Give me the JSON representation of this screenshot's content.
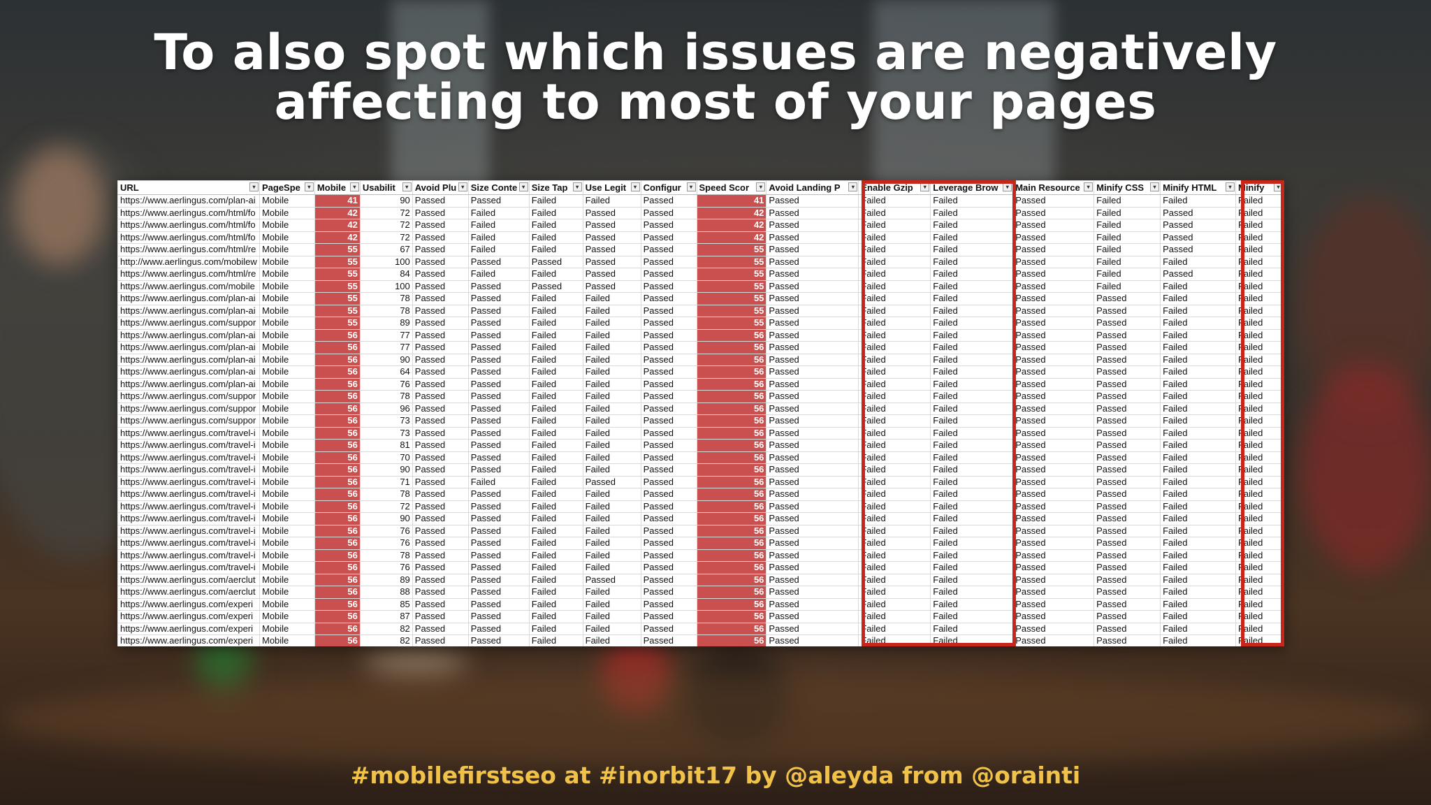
{
  "slide": {
    "title_line1": "To also spot which issues are negatively",
    "title_line2": "affecting to most of your pages",
    "footer": "#mobilefirstseo at #inorbit17 by @aleyda from @orainti"
  },
  "colors": {
    "score_fill": "#c9504f",
    "highlight_border": "#c8261a",
    "footer_text": "#f0c24a"
  },
  "table": {
    "headers": [
      "URL",
      "PageSpe",
      "Mobile",
      "Usabilit",
      "Avoid Plu",
      "Size Conte",
      "Size Tap",
      "Use Legit",
      "Configur",
      "Speed Scor",
      "Avoid Landing P",
      "Enable Gzip",
      "Leverage Brow",
      "Main Resource",
      "Minify CSS",
      "Minify HTML",
      "Minify"
    ],
    "filter_icon": "filter-dropdown-icon",
    "rows": [
      [
        "https://www.aerlingus.com/plan-ai",
        "Mobile",
        "41",
        "90",
        "Passed",
        "Passed",
        "Failed",
        "Failed",
        "Passed",
        "41",
        "Passed",
        "Failed",
        "Failed",
        "Passed",
        "Failed",
        "Failed",
        "Failed"
      ],
      [
        "https://www.aerlingus.com/html/fo",
        "Mobile",
        "42",
        "72",
        "Passed",
        "Failed",
        "Failed",
        "Passed",
        "Passed",
        "42",
        "Passed",
        "Failed",
        "Failed",
        "Passed",
        "Failed",
        "Passed",
        "Failed"
      ],
      [
        "https://www.aerlingus.com/html/fo",
        "Mobile",
        "42",
        "72",
        "Passed",
        "Failed",
        "Failed",
        "Passed",
        "Passed",
        "42",
        "Passed",
        "Failed",
        "Failed",
        "Passed",
        "Failed",
        "Passed",
        "Failed"
      ],
      [
        "https://www.aerlingus.com/html/fo",
        "Mobile",
        "42",
        "72",
        "Passed",
        "Failed",
        "Failed",
        "Passed",
        "Passed",
        "42",
        "Passed",
        "Failed",
        "Failed",
        "Passed",
        "Failed",
        "Passed",
        "Failed"
      ],
      [
        "https://www.aerlingus.com/html/re",
        "Mobile",
        "55",
        "67",
        "Passed",
        "Failed",
        "Failed",
        "Passed",
        "Passed",
        "55",
        "Passed",
        "Failed",
        "Failed",
        "Passed",
        "Failed",
        "Passed",
        "Failed"
      ],
      [
        "http://www.aerlingus.com/mobilew",
        "Mobile",
        "55",
        "100",
        "Passed",
        "Passed",
        "Passed",
        "Passed",
        "Passed",
        "55",
        "Passed",
        "Failed",
        "Failed",
        "Passed",
        "Failed",
        "Failed",
        "Failed"
      ],
      [
        "https://www.aerlingus.com/html/re",
        "Mobile",
        "55",
        "84",
        "Passed",
        "Failed",
        "Failed",
        "Passed",
        "Passed",
        "55",
        "Passed",
        "Failed",
        "Failed",
        "Passed",
        "Failed",
        "Passed",
        "Failed"
      ],
      [
        "https://www.aerlingus.com/mobile",
        "Mobile",
        "55",
        "100",
        "Passed",
        "Passed",
        "Passed",
        "Passed",
        "Passed",
        "55",
        "Passed",
        "Failed",
        "Failed",
        "Passed",
        "Failed",
        "Failed",
        "Failed"
      ],
      [
        "https://www.aerlingus.com/plan-ai",
        "Mobile",
        "55",
        "78",
        "Passed",
        "Passed",
        "Failed",
        "Failed",
        "Passed",
        "55",
        "Passed",
        "Failed",
        "Failed",
        "Passed",
        "Passed",
        "Failed",
        "Failed"
      ],
      [
        "https://www.aerlingus.com/plan-ai",
        "Mobile",
        "55",
        "78",
        "Passed",
        "Passed",
        "Failed",
        "Failed",
        "Passed",
        "55",
        "Passed",
        "Failed",
        "Failed",
        "Passed",
        "Passed",
        "Failed",
        "Failed"
      ],
      [
        "https://www.aerlingus.com/suppor",
        "Mobile",
        "55",
        "89",
        "Passed",
        "Passed",
        "Failed",
        "Failed",
        "Passed",
        "55",
        "Passed",
        "Failed",
        "Failed",
        "Passed",
        "Passed",
        "Failed",
        "Failed"
      ],
      [
        "https://www.aerlingus.com/plan-ai",
        "Mobile",
        "56",
        "77",
        "Passed",
        "Passed",
        "Failed",
        "Failed",
        "Passed",
        "56",
        "Passed",
        "Failed",
        "Failed",
        "Passed",
        "Passed",
        "Failed",
        "Failed"
      ],
      [
        "https://www.aerlingus.com/plan-ai",
        "Mobile",
        "56",
        "77",
        "Passed",
        "Passed",
        "Failed",
        "Failed",
        "Passed",
        "56",
        "Passed",
        "Failed",
        "Failed",
        "Passed",
        "Passed",
        "Failed",
        "Failed"
      ],
      [
        "https://www.aerlingus.com/plan-ai",
        "Mobile",
        "56",
        "90",
        "Passed",
        "Passed",
        "Failed",
        "Failed",
        "Passed",
        "56",
        "Passed",
        "Failed",
        "Failed",
        "Passed",
        "Passed",
        "Failed",
        "Failed"
      ],
      [
        "https://www.aerlingus.com/plan-ai",
        "Mobile",
        "56",
        "64",
        "Passed",
        "Passed",
        "Failed",
        "Failed",
        "Passed",
        "56",
        "Passed",
        "Failed",
        "Failed",
        "Passed",
        "Passed",
        "Failed",
        "Failed"
      ],
      [
        "https://www.aerlingus.com/plan-ai",
        "Mobile",
        "56",
        "76",
        "Passed",
        "Passed",
        "Failed",
        "Failed",
        "Passed",
        "56",
        "Passed",
        "Failed",
        "Failed",
        "Passed",
        "Passed",
        "Failed",
        "Failed"
      ],
      [
        "https://www.aerlingus.com/suppor",
        "Mobile",
        "56",
        "78",
        "Passed",
        "Passed",
        "Failed",
        "Failed",
        "Passed",
        "56",
        "Passed",
        "Failed",
        "Failed",
        "Passed",
        "Passed",
        "Failed",
        "Failed"
      ],
      [
        "https://www.aerlingus.com/suppor",
        "Mobile",
        "56",
        "96",
        "Passed",
        "Passed",
        "Failed",
        "Failed",
        "Passed",
        "56",
        "Passed",
        "Failed",
        "Failed",
        "Passed",
        "Passed",
        "Failed",
        "Failed"
      ],
      [
        "https://www.aerlingus.com/suppor",
        "Mobile",
        "56",
        "73",
        "Passed",
        "Passed",
        "Failed",
        "Failed",
        "Passed",
        "56",
        "Passed",
        "Failed",
        "Failed",
        "Passed",
        "Passed",
        "Failed",
        "Failed"
      ],
      [
        "https://www.aerlingus.com/travel-i",
        "Mobile",
        "56",
        "73",
        "Passed",
        "Passed",
        "Failed",
        "Failed",
        "Passed",
        "56",
        "Passed",
        "Failed",
        "Failed",
        "Passed",
        "Passed",
        "Failed",
        "Failed"
      ],
      [
        "https://www.aerlingus.com/travel-i",
        "Mobile",
        "56",
        "81",
        "Passed",
        "Passed",
        "Failed",
        "Failed",
        "Passed",
        "56",
        "Passed",
        "Failed",
        "Failed",
        "Passed",
        "Passed",
        "Failed",
        "Failed"
      ],
      [
        "https://www.aerlingus.com/travel-i",
        "Mobile",
        "56",
        "70",
        "Passed",
        "Passed",
        "Failed",
        "Failed",
        "Passed",
        "56",
        "Passed",
        "Failed",
        "Failed",
        "Passed",
        "Passed",
        "Failed",
        "Failed"
      ],
      [
        "https://www.aerlingus.com/travel-i",
        "Mobile",
        "56",
        "90",
        "Passed",
        "Passed",
        "Failed",
        "Failed",
        "Passed",
        "56",
        "Passed",
        "Failed",
        "Failed",
        "Passed",
        "Passed",
        "Failed",
        "Failed"
      ],
      [
        "https://www.aerlingus.com/travel-i",
        "Mobile",
        "56",
        "71",
        "Passed",
        "Failed",
        "Failed",
        "Passed",
        "Passed",
        "56",
        "Passed",
        "Failed",
        "Failed",
        "Passed",
        "Passed",
        "Failed",
        "Failed"
      ],
      [
        "https://www.aerlingus.com/travel-i",
        "Mobile",
        "56",
        "78",
        "Passed",
        "Passed",
        "Failed",
        "Failed",
        "Passed",
        "56",
        "Passed",
        "Failed",
        "Failed",
        "Passed",
        "Passed",
        "Failed",
        "Failed"
      ],
      [
        "https://www.aerlingus.com/travel-i",
        "Mobile",
        "56",
        "72",
        "Passed",
        "Passed",
        "Failed",
        "Failed",
        "Passed",
        "56",
        "Passed",
        "Failed",
        "Failed",
        "Passed",
        "Passed",
        "Failed",
        "Failed"
      ],
      [
        "https://www.aerlingus.com/travel-i",
        "Mobile",
        "56",
        "90",
        "Passed",
        "Passed",
        "Failed",
        "Failed",
        "Passed",
        "56",
        "Passed",
        "Failed",
        "Failed",
        "Passed",
        "Passed",
        "Failed",
        "Failed"
      ],
      [
        "https://www.aerlingus.com/travel-i",
        "Mobile",
        "56",
        "76",
        "Passed",
        "Passed",
        "Failed",
        "Failed",
        "Passed",
        "56",
        "Passed",
        "Failed",
        "Failed",
        "Passed",
        "Passed",
        "Failed",
        "Failed"
      ],
      [
        "https://www.aerlingus.com/travel-i",
        "Mobile",
        "56",
        "76",
        "Passed",
        "Passed",
        "Failed",
        "Failed",
        "Passed",
        "56",
        "Passed",
        "Failed",
        "Failed",
        "Passed",
        "Passed",
        "Failed",
        "Failed"
      ],
      [
        "https://www.aerlingus.com/travel-i",
        "Mobile",
        "56",
        "78",
        "Passed",
        "Passed",
        "Failed",
        "Failed",
        "Passed",
        "56",
        "Passed",
        "Failed",
        "Failed",
        "Passed",
        "Passed",
        "Failed",
        "Failed"
      ],
      [
        "https://www.aerlingus.com/travel-i",
        "Mobile",
        "56",
        "76",
        "Passed",
        "Passed",
        "Failed",
        "Failed",
        "Passed",
        "56",
        "Passed",
        "Failed",
        "Failed",
        "Passed",
        "Passed",
        "Failed",
        "Failed"
      ],
      [
        "https://www.aerlingus.com/aerclut",
        "Mobile",
        "56",
        "89",
        "Passed",
        "Passed",
        "Failed",
        "Passed",
        "Passed",
        "56",
        "Passed",
        "Failed",
        "Failed",
        "Passed",
        "Passed",
        "Failed",
        "Failed"
      ],
      [
        "https://www.aerlingus.com/aerclut",
        "Mobile",
        "56",
        "88",
        "Passed",
        "Passed",
        "Failed",
        "Failed",
        "Passed",
        "56",
        "Passed",
        "Failed",
        "Failed",
        "Passed",
        "Passed",
        "Failed",
        "Failed"
      ],
      [
        "https://www.aerlingus.com/experi",
        "Mobile",
        "56",
        "85",
        "Passed",
        "Passed",
        "Failed",
        "Failed",
        "Passed",
        "56",
        "Passed",
        "Failed",
        "Failed",
        "Passed",
        "Passed",
        "Failed",
        "Failed"
      ],
      [
        "https://www.aerlingus.com/experi",
        "Mobile",
        "56",
        "87",
        "Passed",
        "Passed",
        "Failed",
        "Failed",
        "Passed",
        "56",
        "Passed",
        "Failed",
        "Failed",
        "Passed",
        "Passed",
        "Failed",
        "Failed"
      ],
      [
        "https://www.aerlingus.com/experi",
        "Mobile",
        "56",
        "82",
        "Passed",
        "Passed",
        "Failed",
        "Failed",
        "Passed",
        "56",
        "Passed",
        "Failed",
        "Failed",
        "Passed",
        "Passed",
        "Failed",
        "Failed"
      ],
      [
        "https://www.aerlingus.com/experi",
        "Mobile",
        "56",
        "82",
        "Passed",
        "Passed",
        "Failed",
        "Failed",
        "Passed",
        "56",
        "Passed",
        "Failed",
        "Failed",
        "Passed",
        "Passed",
        "Failed",
        "Failed"
      ]
    ]
  }
}
